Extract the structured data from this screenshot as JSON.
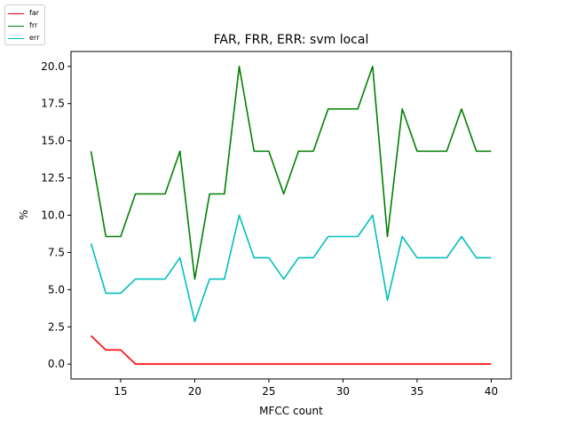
{
  "chart_data": {
    "type": "line",
    "title": "FAR, FRR, ERR: svm local",
    "xlabel": "MFCC count",
    "ylabel": "%",
    "xlim": [
      11.65,
      41.35
    ],
    "ylim": [
      -1.0,
      21.0
    ],
    "xticks": [
      15,
      20,
      25,
      30,
      35,
      40
    ],
    "xtick_labels": [
      "15",
      "20",
      "25",
      "30",
      "35",
      "40"
    ],
    "yticks": [
      0.0,
      2.5,
      5.0,
      7.5,
      10.0,
      12.5,
      15.0,
      17.5,
      20.0
    ],
    "ytick_labels": [
      "0.0",
      "2.5",
      "5.0",
      "7.5",
      "10.0",
      "12.5",
      "15.0",
      "17.5",
      "20.0"
    ],
    "grid": false,
    "legend_position": "top-left",
    "x": [
      13,
      14,
      15,
      16,
      17,
      18,
      19,
      20,
      21,
      22,
      23,
      24,
      25,
      26,
      27,
      28,
      29,
      30,
      31,
      32,
      33,
      34,
      35,
      36,
      37,
      38,
      39,
      40
    ],
    "series": [
      {
        "name": "far",
        "color": "#ff0000",
        "values": [
          1.9,
          0.95,
          0.95,
          0,
          0,
          0,
          0,
          0,
          0,
          0,
          0,
          0,
          0,
          0,
          0,
          0,
          0,
          0,
          0,
          0,
          0,
          0,
          0,
          0,
          0,
          0,
          0,
          0
        ]
      },
      {
        "name": "frr",
        "color": "#008000",
        "values": [
          14.3,
          8.57,
          8.57,
          11.43,
          11.43,
          11.43,
          14.3,
          5.71,
          11.43,
          11.43,
          20.0,
          14.3,
          14.3,
          11.43,
          14.3,
          14.3,
          17.14,
          17.14,
          17.14,
          20.0,
          8.57,
          17.14,
          14.3,
          14.3,
          14.3,
          17.14,
          14.3,
          14.3
        ]
      },
      {
        "name": "err",
        "color": "#00bfbf",
        "values": [
          8.1,
          4.76,
          4.76,
          5.71,
          5.71,
          5.71,
          7.14,
          2.86,
          5.71,
          5.71,
          10.0,
          7.14,
          7.14,
          5.71,
          7.14,
          7.14,
          8.57,
          8.57,
          8.57,
          10.0,
          4.29,
          8.57,
          7.14,
          7.14,
          7.14,
          8.57,
          7.14,
          7.14
        ]
      }
    ]
  }
}
